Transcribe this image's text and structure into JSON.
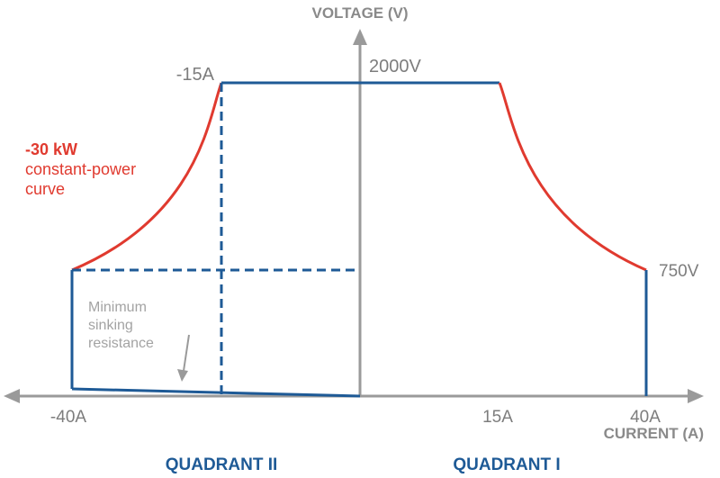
{
  "colors": {
    "axis": "#9a9a9a",
    "envelope": "#1e5a96",
    "power_curve": "#e03a2f",
    "note": "#a3a3a3",
    "label": "#7d7d7d"
  },
  "axes": {
    "y_title": "VOLTAGE (V)",
    "x_title": "CURRENT (A)"
  },
  "labels": {
    "neg_15a": "-15A",
    "v_2000": "2000V",
    "v_750": "750V",
    "neg_40a": "-40A",
    "pos_15a": "15A",
    "pos_40a": "40A"
  },
  "annotations": {
    "power_value": "-30 kW",
    "power_line1": "constant-power",
    "power_line2": "curve",
    "sink_line1": "Minimum",
    "sink_line2": "sinking",
    "sink_line3": "resistance"
  },
  "quadrants": {
    "left": "QUADRANT II",
    "right": "QUADRANT I"
  }
}
